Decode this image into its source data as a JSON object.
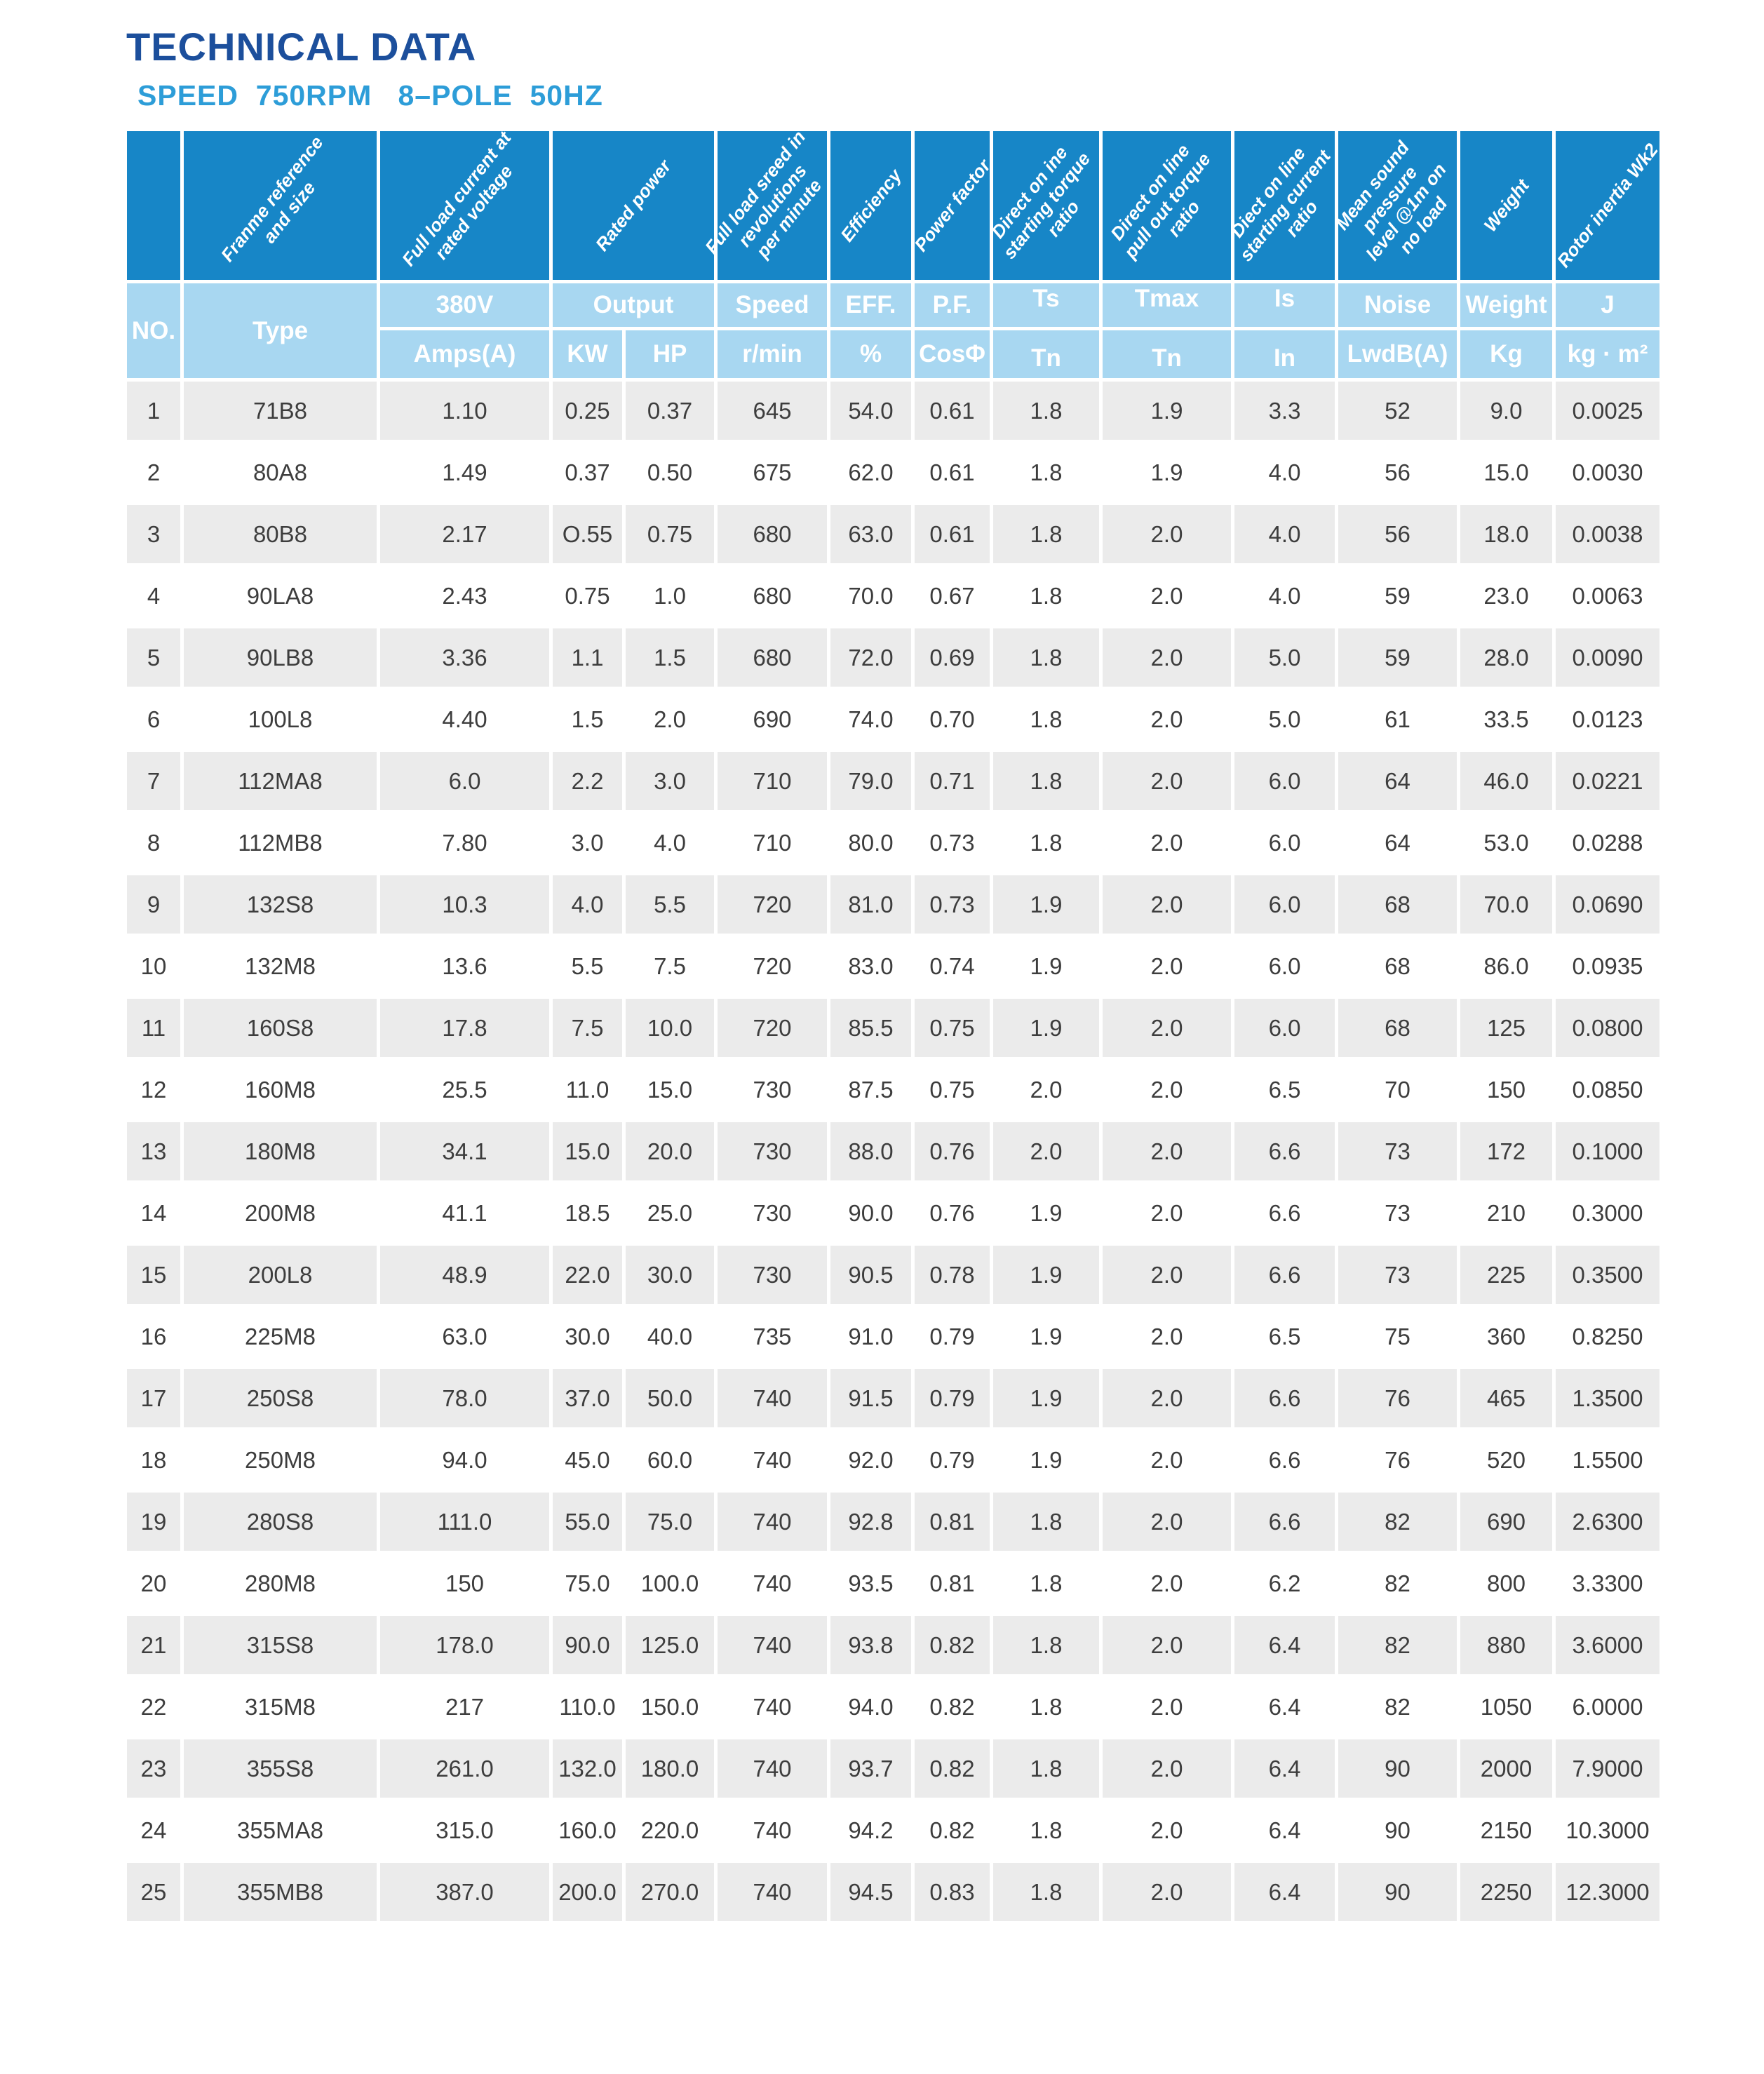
{
  "page": {
    "title": "TECHNICAL DATA",
    "subtitle": "SPEED  750RPM   8–POLE  50HZ"
  },
  "colors": {
    "header_blue": "#1786c7",
    "subheader_blue": "#a8d7f1",
    "title_navy": "#1c4f9c",
    "subtitle_blue": "#2d9dd8",
    "row_gray": "#ebebeb"
  },
  "table": {
    "rotated_headers": [
      "Franme reference\nand size",
      "Full load current at\nrated voltage",
      "Rated power",
      "Full load sreed in\nrevolutions\nper minute",
      "Efficiency",
      "Power factor",
      "Direct on ine\nstarting torque\nratio",
      "Direct on line\npull out torque\nratio",
      "Diect on line\nstarting current\nratio",
      "Mean sound\npressure\nlevel @1m on\nno load",
      "Weight",
      "Rotor inertia Wk2"
    ],
    "columns_top": [
      "NO.",
      "Type",
      "380V",
      "Output",
      "Speed",
      "EFF.",
      "P.F.",
      "Ts",
      "Tmax",
      "Is",
      "Noise",
      "Weight",
      "J"
    ],
    "columns_bottom": [
      "Amps(A)",
      "KW",
      "HP",
      "r/min",
      "%",
      "CosΦ",
      "Tn",
      "Tn",
      "In",
      "LwdB(A)",
      "Kg",
      "kg · m²"
    ],
    "rows": [
      [
        "1",
        "71B8",
        "1.10",
        "0.25",
        "0.37",
        "645",
        "54.0",
        "0.61",
        "1.8",
        "1.9",
        "3.3",
        "52",
        "9.0",
        "0.0025"
      ],
      [
        "2",
        "80A8",
        "1.49",
        "0.37",
        "0.50",
        "675",
        "62.0",
        "0.61",
        "1.8",
        "1.9",
        "4.0",
        "56",
        "15.0",
        "0.0030"
      ],
      [
        "3",
        "80B8",
        "2.17",
        "O.55",
        "0.75",
        "680",
        "63.0",
        "0.61",
        "1.8",
        "2.0",
        "4.0",
        "56",
        "18.0",
        "0.0038"
      ],
      [
        "4",
        "90LA8",
        "2.43",
        "0.75",
        "1.0",
        "680",
        "70.0",
        "0.67",
        "1.8",
        "2.0",
        "4.0",
        "59",
        "23.0",
        "0.0063"
      ],
      [
        "5",
        "90LB8",
        "3.36",
        "1.1",
        "1.5",
        "680",
        "72.0",
        "0.69",
        "1.8",
        "2.0",
        "5.0",
        "59",
        "28.0",
        "0.0090"
      ],
      [
        "6",
        "100L8",
        "4.40",
        "1.5",
        "2.0",
        "690",
        "74.0",
        "0.70",
        "1.8",
        "2.0",
        "5.0",
        "61",
        "33.5",
        "0.0123"
      ],
      [
        "7",
        "112MA8",
        "6.0",
        "2.2",
        "3.0",
        "710",
        "79.0",
        "0.71",
        "1.8",
        "2.0",
        "6.0",
        "64",
        "46.0",
        "0.0221"
      ],
      [
        "8",
        "112MB8",
        "7.80",
        "3.0",
        "4.0",
        "710",
        "80.0",
        "0.73",
        "1.8",
        "2.0",
        "6.0",
        "64",
        "53.0",
        "0.0288"
      ],
      [
        "9",
        "132S8",
        "10.3",
        "4.0",
        "5.5",
        "720",
        "81.0",
        "0.73",
        "1.9",
        "2.0",
        "6.0",
        "68",
        "70.0",
        "0.0690"
      ],
      [
        "10",
        "132M8",
        "13.6",
        "5.5",
        "7.5",
        "720",
        "83.0",
        "0.74",
        "1.9",
        "2.0",
        "6.0",
        "68",
        "86.0",
        "0.0935"
      ],
      [
        "11",
        "160S8",
        "17.8",
        "7.5",
        "10.0",
        "720",
        "85.5",
        "0.75",
        "1.9",
        "2.0",
        "6.0",
        "68",
        "125",
        "0.0800"
      ],
      [
        "12",
        "160M8",
        "25.5",
        "11.0",
        "15.0",
        "730",
        "87.5",
        "0.75",
        "2.0",
        "2.0",
        "6.5",
        "70",
        "150",
        "0.0850"
      ],
      [
        "13",
        "180M8",
        "34.1",
        "15.0",
        "20.0",
        "730",
        "88.0",
        "0.76",
        "2.0",
        "2.0",
        "6.6",
        "73",
        "172",
        "0.1000"
      ],
      [
        "14",
        "200M8",
        "41.1",
        "18.5",
        "25.0",
        "730",
        "90.0",
        "0.76",
        "1.9",
        "2.0",
        "6.6",
        "73",
        "210",
        "0.3000"
      ],
      [
        "15",
        "200L8",
        "48.9",
        "22.0",
        "30.0",
        "730",
        "90.5",
        "0.78",
        "1.9",
        "2.0",
        "6.6",
        "73",
        "225",
        "0.3500"
      ],
      [
        "16",
        "225M8",
        "63.0",
        "30.0",
        "40.0",
        "735",
        "91.0",
        "0.79",
        "1.9",
        "2.0",
        "6.5",
        "75",
        "360",
        "0.8250"
      ],
      [
        "17",
        "250S8",
        "78.0",
        "37.0",
        "50.0",
        "740",
        "91.5",
        "0.79",
        "1.9",
        "2.0",
        "6.6",
        "76",
        "465",
        "1.3500"
      ],
      [
        "18",
        "250M8",
        "94.0",
        "45.0",
        "60.0",
        "740",
        "92.0",
        "0.79",
        "1.9",
        "2.0",
        "6.6",
        "76",
        "520",
        "1.5500"
      ],
      [
        "19",
        "280S8",
        "111.0",
        "55.0",
        "75.0",
        "740",
        "92.8",
        "0.81",
        "1.8",
        "2.0",
        "6.6",
        "82",
        "690",
        "2.6300"
      ],
      [
        "20",
        "280M8",
        "150",
        "75.0",
        "100.0",
        "740",
        "93.5",
        "0.81",
        "1.8",
        "2.0",
        "6.2",
        "82",
        "800",
        "3.3300"
      ],
      [
        "21",
        "315S8",
        "178.0",
        "90.0",
        "125.0",
        "740",
        "93.8",
        "0.82",
        "1.8",
        "2.0",
        "6.4",
        "82",
        "880",
        "3.6000"
      ],
      [
        "22",
        "315M8",
        "217",
        "110.0",
        "150.0",
        "740",
        "94.0",
        "0.82",
        "1.8",
        "2.0",
        "6.4",
        "82",
        "1050",
        "6.0000"
      ],
      [
        "23",
        "355S8",
        "261.0",
        "132.0",
        "180.0",
        "740",
        "93.7",
        "0.82",
        "1.8",
        "2.0",
        "6.4",
        "90",
        "2000",
        "7.9000"
      ],
      [
        "24",
        "355MA8",
        "315.0",
        "160.0",
        "220.0",
        "740",
        "94.2",
        "0.82",
        "1.8",
        "2.0",
        "6.4",
        "90",
        "2150",
        "10.3000"
      ],
      [
        "25",
        "355MB8",
        "387.0",
        "200.0",
        "270.0",
        "740",
        "94.5",
        "0.83",
        "1.8",
        "2.0",
        "6.4",
        "90",
        "2250",
        "12.3000"
      ]
    ]
  }
}
